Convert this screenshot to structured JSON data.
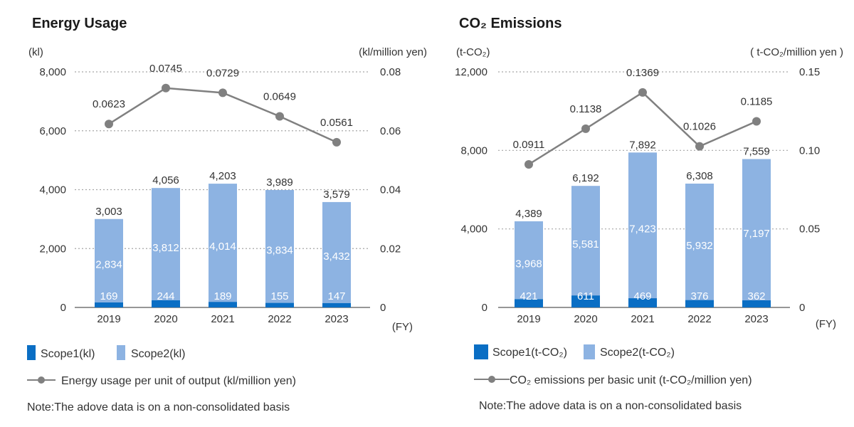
{
  "colors": {
    "scope1": "#0a6ec4",
    "scope2": "#8db3e2",
    "line": "#808080",
    "grid": "#a6a6a6",
    "axis": "#333333"
  },
  "chart_data": [
    {
      "type": "bar",
      "stacked": true,
      "title": "Energy Usage",
      "left_unit": "(kl)",
      "right_unit": "(kl/million yen)",
      "xunit": "(FY)",
      "categories": [
        "2019",
        "2020",
        "2021",
        "2022",
        "2023"
      ],
      "ylim": [
        0,
        8000
      ],
      "yticks": [
        "0",
        "2,000",
        "4,000",
        "6,000",
        "8,000"
      ],
      "y2lim": [
        0,
        0.08
      ],
      "y2ticks": [
        "0",
        "0.02",
        "0.04",
        "0.06",
        "0.08"
      ],
      "totals": [
        "3,003",
        "4,056",
        "4,203",
        "3,989",
        "3,579"
      ],
      "series": [
        {
          "name": "Scope1(kl)",
          "values": [
            169,
            244,
            189,
            155,
            147
          ],
          "labels": [
            "169",
            "244",
            "189",
            "155",
            "147"
          ]
        },
        {
          "name": "Scope2(kl)",
          "values": [
            2834,
            3812,
            4014,
            3834,
            3432
          ],
          "labels": [
            "2,834",
            "3,812",
            "4,014",
            "3,834",
            "3,432"
          ]
        },
        {
          "name": "Energy usage per unit of output (kl/million yen)",
          "type": "line",
          "axis": "right",
          "values": [
            0.0623,
            0.0745,
            0.0729,
            0.0649,
            0.0561
          ],
          "labels": [
            "0.0623",
            "0.0745",
            "0.0729",
            "0.0649",
            "0.0561"
          ]
        }
      ],
      "grid": true,
      "legend_position": "bottom-left",
      "note": "Note:The adove data is on a non-consolidated basis"
    },
    {
      "type": "bar",
      "stacked": true,
      "title": "CO₂ Emissions",
      "left_unit": "(t-CO₂)",
      "right_unit": "( t-CO₂/million yen )",
      "xunit": "(FY)",
      "categories": [
        "2019",
        "2020",
        "2021",
        "2022",
        "2023"
      ],
      "ylim": [
        0,
        12000
      ],
      "yticks": [
        "0",
        "4,000",
        "8,000",
        "12,000"
      ],
      "y2lim": [
        0,
        0.15
      ],
      "y2ticks": [
        "0",
        "0.05",
        "0.10",
        "0.15"
      ],
      "totals": [
        "4,389",
        "6,192",
        "7,892",
        "6,308",
        "7,559"
      ],
      "series": [
        {
          "name": "Scope1(t-CO₂)",
          "values": [
            421,
            611,
            469,
            376,
            362
          ],
          "labels": [
            "421",
            "611",
            "469",
            "376",
            "362"
          ]
        },
        {
          "name": "Scope2(t-CO₂)",
          "values": [
            3968,
            5581,
            7423,
            5932,
            7197
          ],
          "labels": [
            "3,968",
            "5,581",
            "7,423",
            "5,932",
            "7,197"
          ]
        },
        {
          "name": "CO₂ emissions per basic unit (t-CO₂/million yen)",
          "type": "line",
          "axis": "right",
          "values": [
            0.0911,
            0.1138,
            0.1369,
            0.1026,
            0.1185
          ],
          "labels": [
            "0.0911",
            "0.1138",
            "0.1369",
            "0.1026",
            "0.1185"
          ]
        }
      ],
      "grid": true,
      "legend_position": "bottom-left",
      "note": "Note:The adove data is on a non-consolidated basis"
    }
  ]
}
